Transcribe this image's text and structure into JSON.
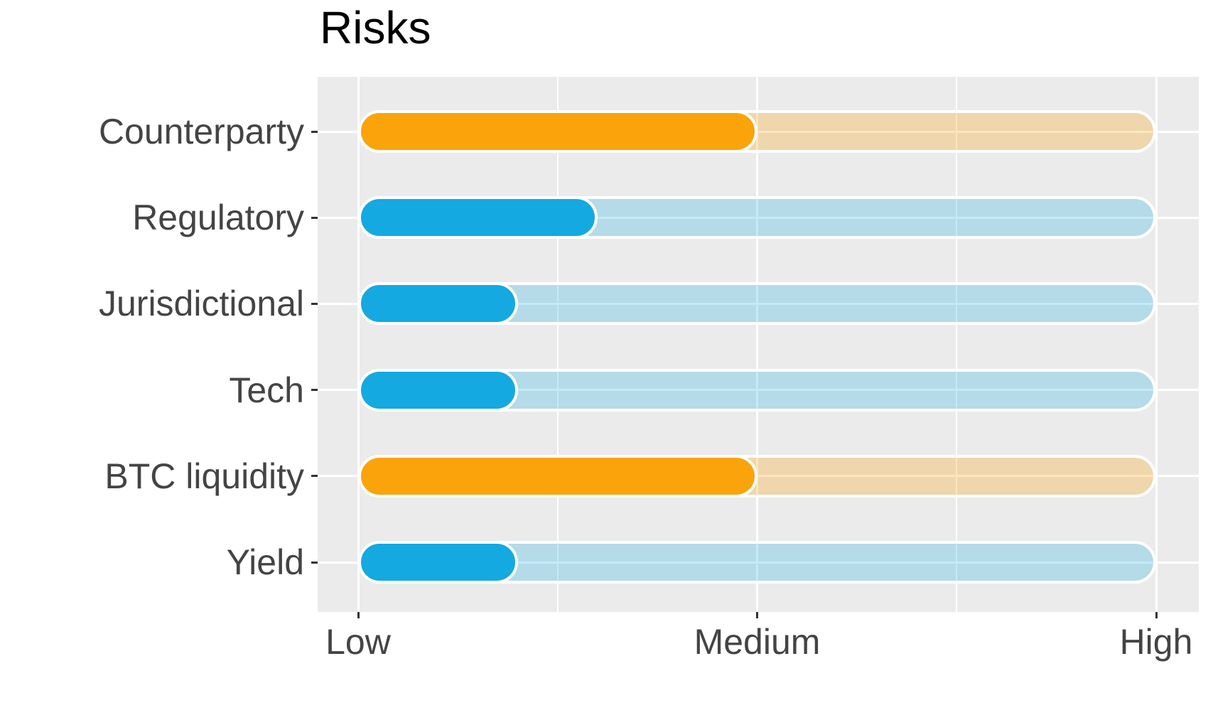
{
  "title": "Risks",
  "chart_data": {
    "type": "bar",
    "orientation": "horizontal",
    "title": "Risks",
    "categories": [
      "Counterparty",
      "Regulatory",
      "Jurisdictional",
      "Tech",
      "BTC liquidity",
      "Yield"
    ],
    "values": [
      2.0,
      1.6,
      1.4,
      1.4,
      2.0,
      1.4
    ],
    "bar_colors": [
      "orange",
      "blue",
      "blue",
      "blue",
      "orange",
      "blue"
    ],
    "track_value": 3,
    "x_ticks": [
      {
        "label": "Low",
        "value": 1
      },
      {
        "label": "Medium",
        "value": 2
      },
      {
        "label": "High",
        "value": 3
      }
    ],
    "x_minor_gridlines": [
      1.5,
      2.5
    ],
    "xlim": [
      0.9,
      3.11
    ],
    "xlabel": "",
    "ylabel": "",
    "grid": true,
    "legend": false
  },
  "colors": {
    "orange": "#FBA30B",
    "blue": "#14A9E1",
    "orange_track": "rgba(251,163,11,0.28)",
    "blue_track": "rgba(20,169,225,0.25)",
    "panel_bg": "#EBEBEB",
    "gridline": "#FFFFFF",
    "axis_text": "#444444",
    "tick_mark": "#333333",
    "title_text": "#000000"
  }
}
